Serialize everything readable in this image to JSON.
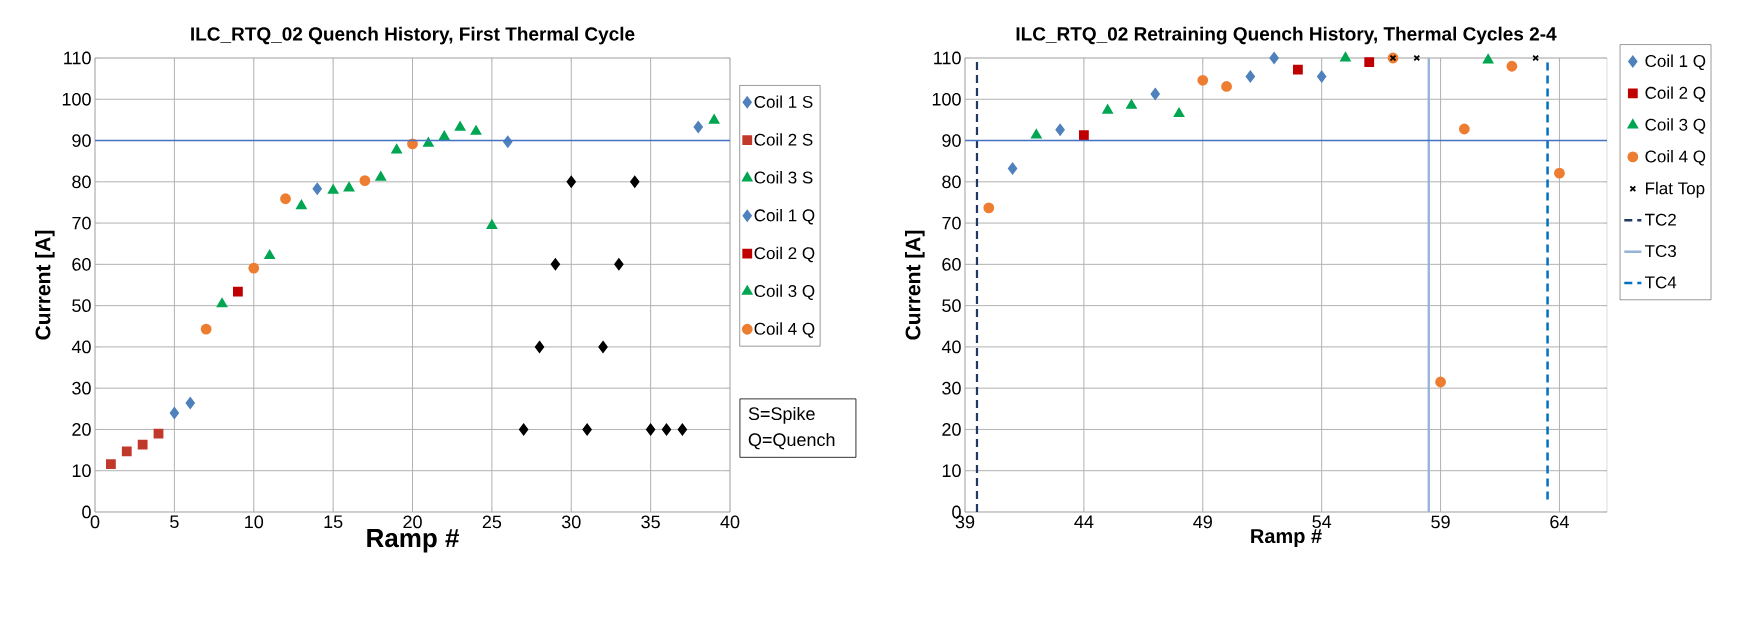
{
  "chart_data": [
    {
      "type": "scatter",
      "title": "ILC_RTQ_02 Quench History, First Thermal Cycle",
      "xlabel": "Ramp #",
      "ylabel": "Current [A]",
      "xlim": [
        0,
        40
      ],
      "ylim": [
        0,
        110
      ],
      "xticks": [
        0,
        5,
        10,
        15,
        20,
        25,
        30,
        35,
        40
      ],
      "yticks": [
        0,
        10,
        20,
        30,
        40,
        50,
        60,
        70,
        80,
        90,
        100,
        110
      ],
      "grid": true,
      "legend": "right",
      "ref_lines": [
        {
          "axis": "y",
          "value": 90,
          "color": "#4472c4"
        }
      ],
      "annotations": [
        "S=Spike",
        "Q=Quench"
      ],
      "series": [
        {
          "name": "Coil 1 S",
          "color": "#4f81bd",
          "marker": "diamond",
          "x": [
            5,
            6
          ],
          "values": [
            24,
            26.4
          ]
        },
        {
          "name": "Coil 2 S",
          "color": "#c0392b",
          "marker": "square",
          "x": [
            1,
            2,
            3,
            4
          ],
          "values": [
            11.6,
            14.7,
            16.3,
            19
          ]
        },
        {
          "name": "Coil 3 S",
          "color": "#00a651",
          "marker": "triangle",
          "x": [
            8,
            21
          ],
          "values": [
            50.4,
            89.3
          ]
        },
        {
          "name": "Coil 1 Q",
          "color": "#4f81bd",
          "marker": "diamond",
          "x": [
            14,
            26,
            38
          ],
          "values": [
            78.3,
            89.7,
            93.3
          ]
        },
        {
          "name": "Coil 2 Q",
          "color": "#c00000",
          "marker": "square",
          "x": [
            9
          ],
          "values": [
            53.4
          ]
        },
        {
          "name": "Coil 3 Q",
          "color": "#00a651",
          "marker": "triangle",
          "x": [
            11,
            13,
            15,
            16,
            18,
            19,
            22,
            23,
            24,
            25,
            39
          ],
          "values": [
            62.1,
            74.2,
            77.9,
            78.5,
            81.1,
            87.7,
            90.9,
            93.2,
            92.2,
            69.4,
            94.9
          ]
        },
        {
          "name": "Coil 4 Q",
          "color": "#ed7d31",
          "marker": "circle",
          "x": [
            7,
            10,
            12,
            17,
            20
          ],
          "values": [
            44.3,
            59.1,
            75.9,
            80.3,
            89.2
          ]
        },
        {
          "color": "#000000",
          "marker": "diamond",
          "x": [
            27,
            28,
            29,
            30,
            31,
            32,
            33,
            34,
            35,
            36,
            37
          ],
          "values": [
            20,
            40,
            60,
            80,
            20,
            40,
            60,
            80,
            20,
            20,
            20
          ]
        }
      ]
    },
    {
      "type": "scatter",
      "title": "ILC_RTQ_02 Retraining Quench History, Thermal Cycles 2-4",
      "xlabel": "Ramp #",
      "ylabel": "Current [A]",
      "xlim": [
        39,
        66
      ],
      "ylim": [
        0,
        110
      ],
      "xticks": [
        39,
        44,
        49,
        54,
        59,
        64
      ],
      "yticks": [
        0,
        10,
        20,
        30,
        40,
        50,
        60,
        70,
        80,
        90,
        100,
        110
      ],
      "grid": true,
      "legend": "top right",
      "ref_lines": [
        {
          "axis": "y",
          "value": 90,
          "color": "#4472c4"
        }
      ],
      "series": [
        {
          "name": "Coil 1 Q",
          "color": "#4f81bd",
          "marker": "diamond",
          "x": [
            41,
            43,
            47,
            51,
            52,
            54
          ],
          "values": [
            83.2,
            92.6,
            101.3,
            105.5,
            110,
            105.5
          ]
        },
        {
          "name": "Coil 2 Q",
          "color": "#c00000",
          "marker": "square",
          "x": [
            44,
            53,
            56
          ],
          "values": [
            91.3,
            107.2,
            109
          ]
        },
        {
          "name": "Coil 3 Q",
          "color": "#00a651",
          "marker": "triangle",
          "x": [
            42,
            45,
            46,
            48,
            55,
            61
          ],
          "values": [
            91.3,
            97.3,
            98.5,
            96.5,
            110,
            109.5
          ]
        },
        {
          "name": "Coil 4 Q",
          "color": "#ed7d31",
          "marker": "circle",
          "x": [
            40,
            49,
            50,
            57,
            59,
            60,
            62,
            64
          ],
          "values": [
            73.7,
            104.6,
            103.1,
            110,
            31.5,
            92.8,
            108,
            82.1
          ]
        },
        {
          "name": "Flat Top",
          "color": "#000000",
          "marker": "cross",
          "x": [
            57,
            58,
            63
          ],
          "values": [
            110,
            110,
            110
          ]
        },
        {
          "name": "TC2",
          "type": "line",
          "color": "#1f3864",
          "line_style": "dashed",
          "marker": "none",
          "x": [
            39.5,
            39.5
          ],
          "values": [
            0,
            110
          ]
        },
        {
          "name": "TC3",
          "type": "line",
          "color": "#95b3d7",
          "line_style": "solid",
          "marker": "none",
          "x": [
            58.5,
            58.5
          ],
          "values": [
            0,
            110
          ]
        },
        {
          "name": "TC4",
          "type": "line",
          "color": "#0070c0",
          "line_style": "dashed",
          "marker": "none",
          "x": [
            63.5,
            63.5
          ],
          "values": [
            3,
            110
          ]
        }
      ]
    }
  ]
}
